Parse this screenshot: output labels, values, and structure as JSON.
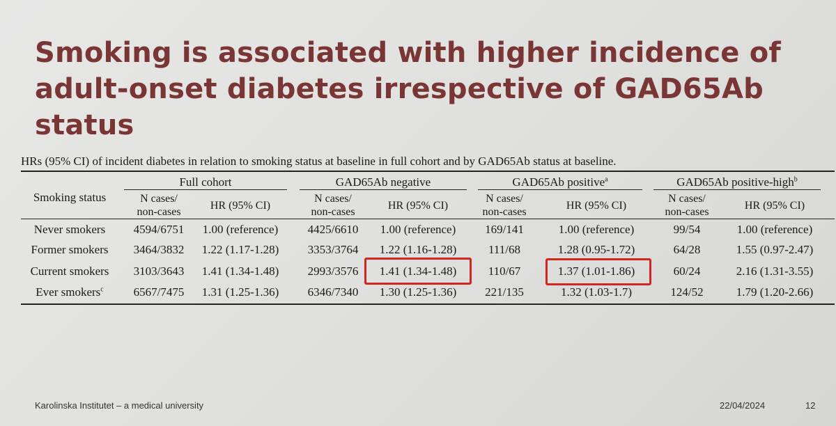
{
  "slide": {
    "title": "Smoking is associated with higher incidence of adult-onset diabetes irrespective of GAD65Ab status"
  },
  "table": {
    "caption": "HRs (95% CI) of incident diabetes in relation to smoking status at baseline in full cohort and by GAD65Ab status at baseline.",
    "row_header": "Smoking status",
    "groups": [
      {
        "label": "Full cohort",
        "sup": ""
      },
      {
        "label": "GAD65Ab negative",
        "sup": ""
      },
      {
        "label": "GAD65Ab positive",
        "sup": "a"
      },
      {
        "label": "GAD65Ab positive-high",
        "sup": "b"
      }
    ],
    "subcol_n_line1": "N cases/",
    "subcol_n_line2": "non-cases",
    "subcol_hr": "HR (95% CI)",
    "rows": [
      {
        "label": "Never smokers",
        "sup": "",
        "cells": [
          "4594/6751",
          "1.00 (reference)",
          "4425/6610",
          "1.00 (reference)",
          "169/141",
          "1.00 (reference)",
          "99/54",
          "1.00 (reference)"
        ]
      },
      {
        "label": "Former smokers",
        "sup": "",
        "cells": [
          "3464/3832",
          "1.22 (1.17-1.28)",
          "3353/3764",
          "1.22 (1.16-1.28)",
          "111/68",
          "1.28 (0.95-1.72)",
          "64/28",
          "1.55 (0.97-2.47)"
        ]
      },
      {
        "label": "Current smokers",
        "sup": "",
        "cells": [
          "3103/3643",
          "1.41 (1.34-1.48)",
          "2993/3576",
          "1.41 (1.34-1.48)",
          "110/67",
          "1.37 (1.01-1.86)",
          "60/24",
          "2.16 (1.31-3.55)"
        ]
      },
      {
        "label": "Ever smokers",
        "sup": "c",
        "cells": [
          "6567/7475",
          "1.31 (1.25-1.36)",
          "6346/7340",
          "1.30 (1.25-1.36)",
          "221/135",
          "1.32 (1.03-1.7)",
          "124/52",
          "1.79 (1.20-2.66)"
        ]
      }
    ],
    "highlight_color": "#d0261f"
  },
  "footer": {
    "institution": "Karolinska Institutet – a medical university",
    "date": "22/04/2024",
    "page": "12"
  }
}
